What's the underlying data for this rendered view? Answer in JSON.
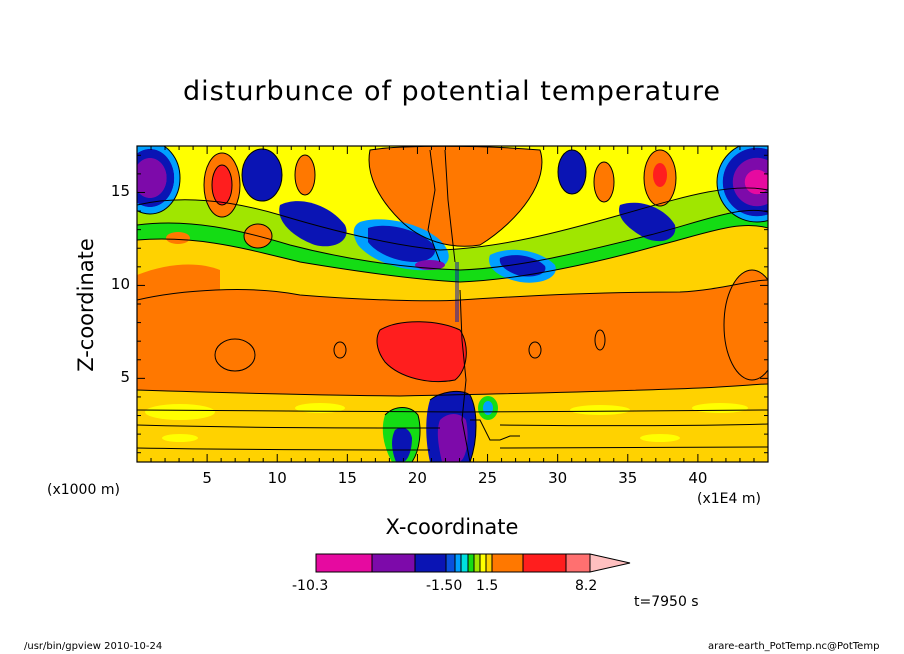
{
  "chart_data": {
    "type": "heatmap",
    "title": "disturbunce of potential temperature",
    "xlabel": "X-coordinate",
    "ylabel": "Z-coordinate",
    "x_unit": "(x1E4 m)",
    "y_unit": "(x1000 m)",
    "xlim": [
      0,
      45
    ],
    "ylim": [
      0.5,
      17.5
    ],
    "x_ticks": [
      "5",
      "10",
      "15",
      "20",
      "25",
      "30",
      "35",
      "40"
    ],
    "y_ticks": [
      "5",
      "10",
      "15"
    ],
    "colorbar": {
      "labels": [
        "-10.3",
        "-1.50",
        "1.5",
        "8.2"
      ],
      "colors": [
        "#e60aa0",
        "#7d0aaa",
        "#0a14b4",
        "#0a50dc",
        "#00a0ff",
        "#00e0e0",
        "#14dc14",
        "#a0e600",
        "#ffff00",
        "#ffd200",
        "#ff7800",
        "#ff1e1e",
        "#ff7070",
        "#ffc0c0"
      ]
    },
    "time_label": "t=7950 s"
  },
  "footer": {
    "left": "/usr/bin/gpview   2010-10-24",
    "right": "arare-earth_PotTemp.nc@PotTemp"
  }
}
